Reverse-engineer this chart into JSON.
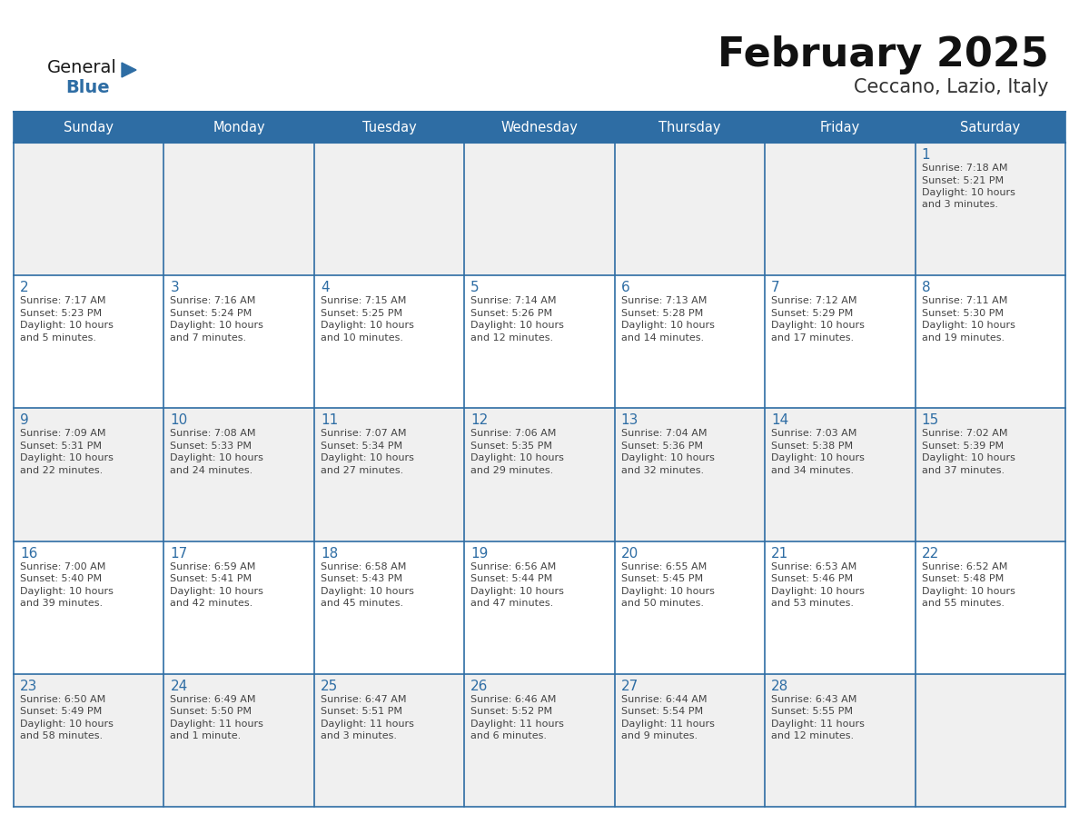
{
  "title": "February 2025",
  "subtitle": "Ceccano, Lazio, Italy",
  "header_bg": "#2E6DA4",
  "header_text_color": "#FFFFFF",
  "border_color": "#2E6DA4",
  "day_names": [
    "Sunday",
    "Monday",
    "Tuesday",
    "Wednesday",
    "Thursday",
    "Friday",
    "Saturday"
  ],
  "title_color": "#111111",
  "subtitle_color": "#333333",
  "day_number_color": "#2E6DA4",
  "info_color": "#444444",
  "logo_general_color": "#1a1a1a",
  "logo_blue_color": "#2E6DA4",
  "row_colors": [
    "#F0F0F0",
    "#FFFFFF",
    "#F0F0F0",
    "#FFFFFF",
    "#F0F0F0"
  ],
  "days": [
    {
      "date": 1,
      "col": 6,
      "row": 0,
      "sunrise": "7:18 AM",
      "sunset": "5:21 PM",
      "daylight_line1": "Daylight: 10 hours",
      "daylight_line2": "and 3 minutes."
    },
    {
      "date": 2,
      "col": 0,
      "row": 1,
      "sunrise": "7:17 AM",
      "sunset": "5:23 PM",
      "daylight_line1": "Daylight: 10 hours",
      "daylight_line2": "and 5 minutes."
    },
    {
      "date": 3,
      "col": 1,
      "row": 1,
      "sunrise": "7:16 AM",
      "sunset": "5:24 PM",
      "daylight_line1": "Daylight: 10 hours",
      "daylight_line2": "and 7 minutes."
    },
    {
      "date": 4,
      "col": 2,
      "row": 1,
      "sunrise": "7:15 AM",
      "sunset": "5:25 PM",
      "daylight_line1": "Daylight: 10 hours",
      "daylight_line2": "and 10 minutes."
    },
    {
      "date": 5,
      "col": 3,
      "row": 1,
      "sunrise": "7:14 AM",
      "sunset": "5:26 PM",
      "daylight_line1": "Daylight: 10 hours",
      "daylight_line2": "and 12 minutes."
    },
    {
      "date": 6,
      "col": 4,
      "row": 1,
      "sunrise": "7:13 AM",
      "sunset": "5:28 PM",
      "daylight_line1": "Daylight: 10 hours",
      "daylight_line2": "and 14 minutes."
    },
    {
      "date": 7,
      "col": 5,
      "row": 1,
      "sunrise": "7:12 AM",
      "sunset": "5:29 PM",
      "daylight_line1": "Daylight: 10 hours",
      "daylight_line2": "and 17 minutes."
    },
    {
      "date": 8,
      "col": 6,
      "row": 1,
      "sunrise": "7:11 AM",
      "sunset": "5:30 PM",
      "daylight_line1": "Daylight: 10 hours",
      "daylight_line2": "and 19 minutes."
    },
    {
      "date": 9,
      "col": 0,
      "row": 2,
      "sunrise": "7:09 AM",
      "sunset": "5:31 PM",
      "daylight_line1": "Daylight: 10 hours",
      "daylight_line2": "and 22 minutes."
    },
    {
      "date": 10,
      "col": 1,
      "row": 2,
      "sunrise": "7:08 AM",
      "sunset": "5:33 PM",
      "daylight_line1": "Daylight: 10 hours",
      "daylight_line2": "and 24 minutes."
    },
    {
      "date": 11,
      "col": 2,
      "row": 2,
      "sunrise": "7:07 AM",
      "sunset": "5:34 PM",
      "daylight_line1": "Daylight: 10 hours",
      "daylight_line2": "and 27 minutes."
    },
    {
      "date": 12,
      "col": 3,
      "row": 2,
      "sunrise": "7:06 AM",
      "sunset": "5:35 PM",
      "daylight_line1": "Daylight: 10 hours",
      "daylight_line2": "and 29 minutes."
    },
    {
      "date": 13,
      "col": 4,
      "row": 2,
      "sunrise": "7:04 AM",
      "sunset": "5:36 PM",
      "daylight_line1": "Daylight: 10 hours",
      "daylight_line2": "and 32 minutes."
    },
    {
      "date": 14,
      "col": 5,
      "row": 2,
      "sunrise": "7:03 AM",
      "sunset": "5:38 PM",
      "daylight_line1": "Daylight: 10 hours",
      "daylight_line2": "and 34 minutes."
    },
    {
      "date": 15,
      "col": 6,
      "row": 2,
      "sunrise": "7:02 AM",
      "sunset": "5:39 PM",
      "daylight_line1": "Daylight: 10 hours",
      "daylight_line2": "and 37 minutes."
    },
    {
      "date": 16,
      "col": 0,
      "row": 3,
      "sunrise": "7:00 AM",
      "sunset": "5:40 PM",
      "daylight_line1": "Daylight: 10 hours",
      "daylight_line2": "and 39 minutes."
    },
    {
      "date": 17,
      "col": 1,
      "row": 3,
      "sunrise": "6:59 AM",
      "sunset": "5:41 PM",
      "daylight_line1": "Daylight: 10 hours",
      "daylight_line2": "and 42 minutes."
    },
    {
      "date": 18,
      "col": 2,
      "row": 3,
      "sunrise": "6:58 AM",
      "sunset": "5:43 PM",
      "daylight_line1": "Daylight: 10 hours",
      "daylight_line2": "and 45 minutes."
    },
    {
      "date": 19,
      "col": 3,
      "row": 3,
      "sunrise": "6:56 AM",
      "sunset": "5:44 PM",
      "daylight_line1": "Daylight: 10 hours",
      "daylight_line2": "and 47 minutes."
    },
    {
      "date": 20,
      "col": 4,
      "row": 3,
      "sunrise": "6:55 AM",
      "sunset": "5:45 PM",
      "daylight_line1": "Daylight: 10 hours",
      "daylight_line2": "and 50 minutes."
    },
    {
      "date": 21,
      "col": 5,
      "row": 3,
      "sunrise": "6:53 AM",
      "sunset": "5:46 PM",
      "daylight_line1": "Daylight: 10 hours",
      "daylight_line2": "and 53 minutes."
    },
    {
      "date": 22,
      "col": 6,
      "row": 3,
      "sunrise": "6:52 AM",
      "sunset": "5:48 PM",
      "daylight_line1": "Daylight: 10 hours",
      "daylight_line2": "and 55 minutes."
    },
    {
      "date": 23,
      "col": 0,
      "row": 4,
      "sunrise": "6:50 AM",
      "sunset": "5:49 PM",
      "daylight_line1": "Daylight: 10 hours",
      "daylight_line2": "and 58 minutes."
    },
    {
      "date": 24,
      "col": 1,
      "row": 4,
      "sunrise": "6:49 AM",
      "sunset": "5:50 PM",
      "daylight_line1": "Daylight: 11 hours",
      "daylight_line2": "and 1 minute."
    },
    {
      "date": 25,
      "col": 2,
      "row": 4,
      "sunrise": "6:47 AM",
      "sunset": "5:51 PM",
      "daylight_line1": "Daylight: 11 hours",
      "daylight_line2": "and 3 minutes."
    },
    {
      "date": 26,
      "col": 3,
      "row": 4,
      "sunrise": "6:46 AM",
      "sunset": "5:52 PM",
      "daylight_line1": "Daylight: 11 hours",
      "daylight_line2": "and 6 minutes."
    },
    {
      "date": 27,
      "col": 4,
      "row": 4,
      "sunrise": "6:44 AM",
      "sunset": "5:54 PM",
      "daylight_line1": "Daylight: 11 hours",
      "daylight_line2": "and 9 minutes."
    },
    {
      "date": 28,
      "col": 5,
      "row": 4,
      "sunrise": "6:43 AM",
      "sunset": "5:55 PM",
      "daylight_line1": "Daylight: 11 hours",
      "daylight_line2": "and 12 minutes."
    }
  ]
}
